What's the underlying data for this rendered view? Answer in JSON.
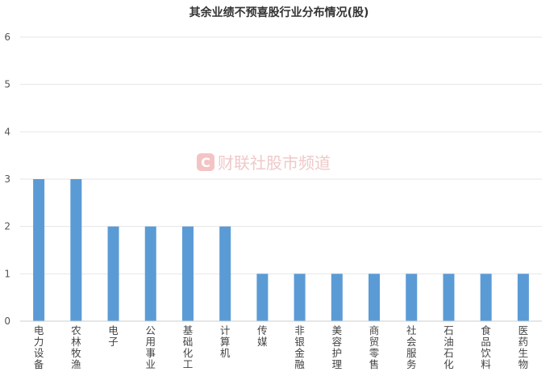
{
  "chart_data": {
    "type": "bar",
    "title": "其余业绩不预喜股行业分布情况(股)",
    "categories": [
      "电力设备",
      "农林牧渔",
      "电子",
      "公用事业",
      "基础化工",
      "计算机",
      "传媒",
      "非银金融",
      "美容护理",
      "商贸零售",
      "社会服务",
      "石油石化",
      "食品饮料",
      "医药生物"
    ],
    "values": [
      3,
      3,
      2,
      2,
      2,
      2,
      1,
      1,
      1,
      1,
      1,
      1,
      1,
      1
    ],
    "ylim": [
      0,
      6
    ],
    "yticks": [
      "0",
      "1",
      "2",
      "3",
      "4",
      "5",
      "6"
    ],
    "grid": true,
    "bar_color": "#5b9bd5",
    "gridline_color": "#e6e6e6"
  },
  "watermark": {
    "text": "财联社股市频道",
    "icon_letter": "C"
  }
}
